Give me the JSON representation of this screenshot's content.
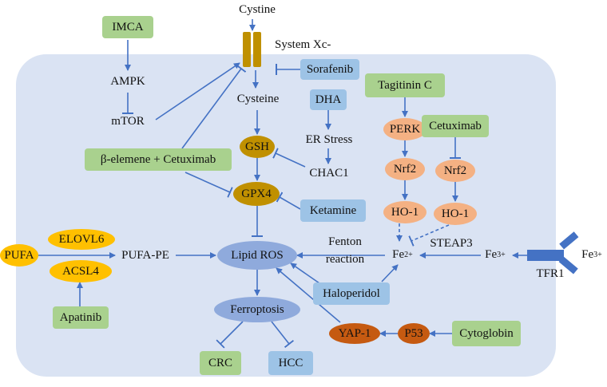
{
  "colors": {
    "panel": "#dae3f3",
    "green_box": "#a9d18e",
    "blue_box": "#9dc3e6",
    "gold_oval": "#c09000",
    "yellow_oval": "#ffc000",
    "peach_oval": "#f4b183",
    "brown_oval": "#c55a11",
    "lavender_oval": "#8faadc",
    "arrow": "#4472c4",
    "transporter": "#bf9000"
  },
  "nodes": {
    "cystine": "Cystine",
    "system_xc": "System Xc-",
    "imca": "IMCA",
    "ampk": "AMPK",
    "mtor": "mTOR",
    "sorafenib": "Sorafenib",
    "cysteine": "Cysteine",
    "dha": "DHA",
    "er_stress": "ER Stress",
    "chac1": "CHAC1",
    "gsh": "GSH",
    "gpx4": "GPX4",
    "ketamine": "Ketamine",
    "beta_elemene": "β-elemene + Cetuximab",
    "tagitinin": "Tagitinin C",
    "perk": "PERK",
    "nrf2_left": "Nrf2",
    "ho1_left": "HO-1",
    "cetuximab": "Cetuximab",
    "nrf2_right": "Nrf2",
    "ho1_right": "HO-1",
    "steap3": "STEAP3",
    "fe2_base": "Fe",
    "fe2_sup": "2+",
    "fe3_base": "Fe",
    "fe3_sup": "3+",
    "fe3_out_base": "Fe",
    "fe3_out_sup": "3+",
    "tfr1": "TFR1",
    "fenton_line1": "Fenton",
    "fenton_line2": "reaction",
    "pufa": "PUFA",
    "elovl6": "ELOVL6",
    "acsl4": "ACSL4",
    "pufa_pe": "PUFA-PE",
    "apatinib": "Apatinib",
    "lipid_ros": "Lipid ROS",
    "haloperidol": "Haloperidol",
    "ferroptosis": "Ferroptosis",
    "crc": "CRC",
    "hcc": "HCC",
    "yap1": "YAP-1",
    "p53": "P53",
    "cytoglobin": "Cytoglobin"
  }
}
